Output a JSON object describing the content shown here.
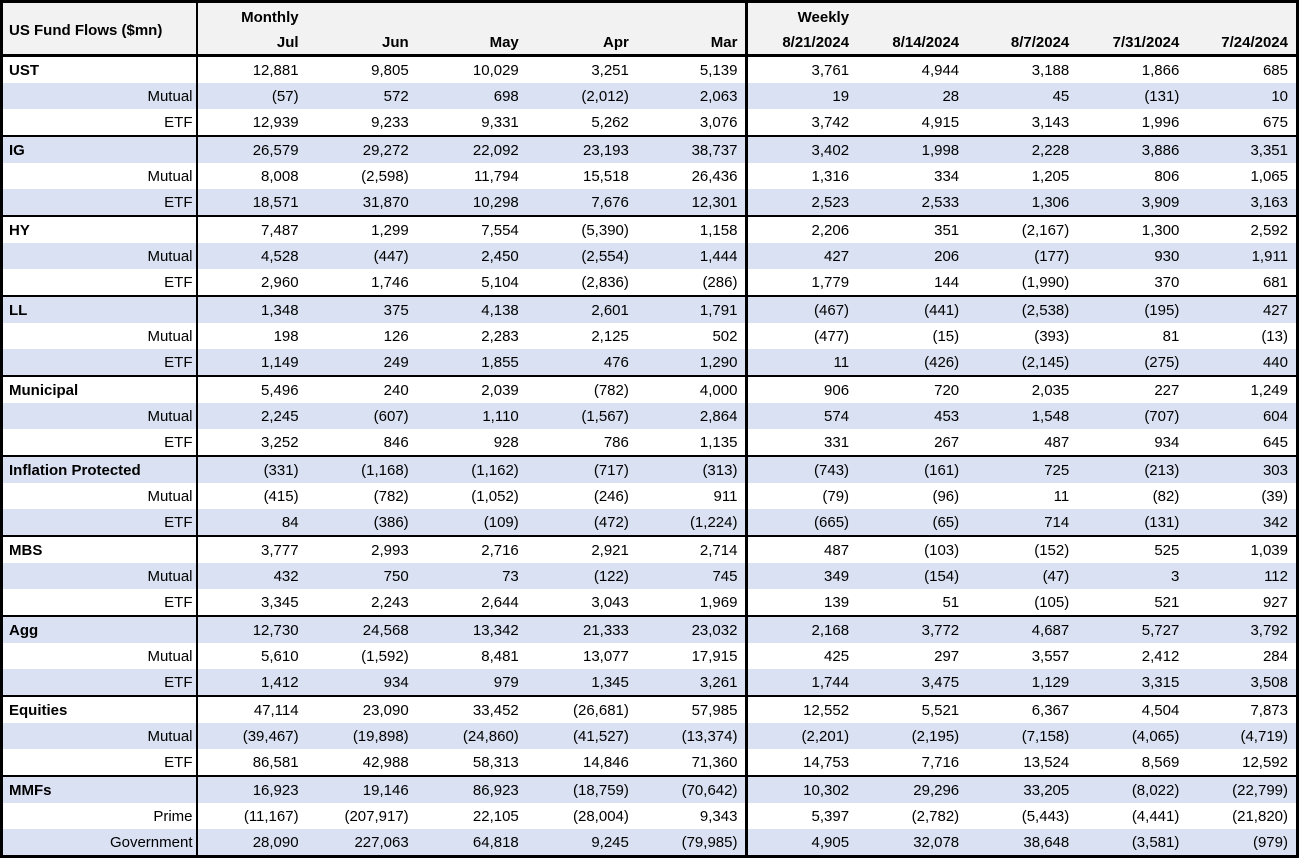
{
  "table": {
    "title": "US Fund Flows ($mn)",
    "monthly_label": "Monthly",
    "weekly_label": "Weekly",
    "monthly_columns": [
      "Jul",
      "Jun",
      "May",
      "Apr",
      "Mar"
    ],
    "weekly_columns": [
      "8/21/2024",
      "8/14/2024",
      "8/7/2024",
      "7/31/2024",
      "7/24/2024"
    ],
    "colors": {
      "band": "#d9e1f2",
      "header_bg": "#f2f2f2",
      "border": "#000000"
    },
    "groups": [
      {
        "rows": [
          {
            "label": "UST",
            "monthly": [
              "12,881",
              "9,805",
              "10,029",
              "3,251",
              "5,139"
            ],
            "weekly": [
              "3,761",
              "4,944",
              "3,188",
              "1,866",
              "685"
            ]
          },
          {
            "label": "Mutual",
            "monthly": [
              "(57)",
              "572",
              "698",
              "(2,012)",
              "2,063"
            ],
            "weekly": [
              "19",
              "28",
              "45",
              "(131)",
              "10"
            ]
          },
          {
            "label": "ETF",
            "monthly": [
              "12,939",
              "9,233",
              "9,331",
              "5,262",
              "3,076"
            ],
            "weekly": [
              "3,742",
              "4,915",
              "3,143",
              "1,996",
              "675"
            ]
          }
        ]
      },
      {
        "rows": [
          {
            "label": "IG",
            "monthly": [
              "26,579",
              "29,272",
              "22,092",
              "23,193",
              "38,737"
            ],
            "weekly": [
              "3,402",
              "1,998",
              "2,228",
              "3,886",
              "3,351"
            ]
          },
          {
            "label": "Mutual",
            "monthly": [
              "8,008",
              "(2,598)",
              "11,794",
              "15,518",
              "26,436"
            ],
            "weekly": [
              "1,316",
              "334",
              "1,205",
              "806",
              "1,065"
            ]
          },
          {
            "label": "ETF",
            "monthly": [
              "18,571",
              "31,870",
              "10,298",
              "7,676",
              "12,301"
            ],
            "weekly": [
              "2,523",
              "2,533",
              "1,306",
              "3,909",
              "3,163"
            ]
          }
        ]
      },
      {
        "rows": [
          {
            "label": "HY",
            "monthly": [
              "7,487",
              "1,299",
              "7,554",
              "(5,390)",
              "1,158"
            ],
            "weekly": [
              "2,206",
              "351",
              "(2,167)",
              "1,300",
              "2,592"
            ]
          },
          {
            "label": "Mutual",
            "monthly": [
              "4,528",
              "(447)",
              "2,450",
              "(2,554)",
              "1,444"
            ],
            "weekly": [
              "427",
              "206",
              "(177)",
              "930",
              "1,911"
            ]
          },
          {
            "label": "ETF",
            "monthly": [
              "2,960",
              "1,746",
              "5,104",
              "(2,836)",
              "(286)"
            ],
            "weekly": [
              "1,779",
              "144",
              "(1,990)",
              "370",
              "681"
            ]
          }
        ]
      },
      {
        "rows": [
          {
            "label": "LL",
            "monthly": [
              "1,348",
              "375",
              "4,138",
              "2,601",
              "1,791"
            ],
            "weekly": [
              "(467)",
              "(441)",
              "(2,538)",
              "(195)",
              "427"
            ]
          },
          {
            "label": "Mutual",
            "monthly": [
              "198",
              "126",
              "2,283",
              "2,125",
              "502"
            ],
            "weekly": [
              "(477)",
              "(15)",
              "(393)",
              "81",
              "(13)"
            ]
          },
          {
            "label": "ETF",
            "monthly": [
              "1,149",
              "249",
              "1,855",
              "476",
              "1,290"
            ],
            "weekly": [
              "11",
              "(426)",
              "(2,145)",
              "(275)",
              "440"
            ]
          }
        ]
      },
      {
        "rows": [
          {
            "label": "Municipal",
            "monthly": [
              "5,496",
              "240",
              "2,039",
              "(782)",
              "4,000"
            ],
            "weekly": [
              "906",
              "720",
              "2,035",
              "227",
              "1,249"
            ]
          },
          {
            "label": "Mutual",
            "monthly": [
              "2,245",
              "(607)",
              "1,110",
              "(1,567)",
              "2,864"
            ],
            "weekly": [
              "574",
              "453",
              "1,548",
              "(707)",
              "604"
            ]
          },
          {
            "label": "ETF",
            "monthly": [
              "3,252",
              "846",
              "928",
              "786",
              "1,135"
            ],
            "weekly": [
              "331",
              "267",
              "487",
              "934",
              "645"
            ]
          }
        ]
      },
      {
        "rows": [
          {
            "label": "Inflation Protected",
            "monthly": [
              "(331)",
              "(1,168)",
              "(1,162)",
              "(717)",
              "(313)"
            ],
            "weekly": [
              "(743)",
              "(161)",
              "725",
              "(213)",
              "303"
            ]
          },
          {
            "label": "Mutual",
            "monthly": [
              "(415)",
              "(782)",
              "(1,052)",
              "(246)",
              "911"
            ],
            "weekly": [
              "(79)",
              "(96)",
              "11",
              "(82)",
              "(39)"
            ]
          },
          {
            "label": "ETF",
            "monthly": [
              "84",
              "(386)",
              "(109)",
              "(472)",
              "(1,224)"
            ],
            "weekly": [
              "(665)",
              "(65)",
              "714",
              "(131)",
              "342"
            ]
          }
        ]
      },
      {
        "rows": [
          {
            "label": "MBS",
            "monthly": [
              "3,777",
              "2,993",
              "2,716",
              "2,921",
              "2,714"
            ],
            "weekly": [
              "487",
              "(103)",
              "(152)",
              "525",
              "1,039"
            ]
          },
          {
            "label": "Mutual",
            "monthly": [
              "432",
              "750",
              "73",
              "(122)",
              "745"
            ],
            "weekly": [
              "349",
              "(154)",
              "(47)",
              "3",
              "112"
            ]
          },
          {
            "label": "ETF",
            "monthly": [
              "3,345",
              "2,243",
              "2,644",
              "3,043",
              "1,969"
            ],
            "weekly": [
              "139",
              "51",
              "(105)",
              "521",
              "927"
            ]
          }
        ]
      },
      {
        "rows": [
          {
            "label": "Agg",
            "monthly": [
              "12,730",
              "24,568",
              "13,342",
              "21,333",
              "23,032"
            ],
            "weekly": [
              "2,168",
              "3,772",
              "4,687",
              "5,727",
              "3,792"
            ]
          },
          {
            "label": "Mutual",
            "monthly": [
              "5,610",
              "(1,592)",
              "8,481",
              "13,077",
              "17,915"
            ],
            "weekly": [
              "425",
              "297",
              "3,557",
              "2,412",
              "284"
            ]
          },
          {
            "label": "ETF",
            "monthly": [
              "1,412",
              "934",
              "979",
              "1,345",
              "3,261"
            ],
            "weekly": [
              "1,744",
              "3,475",
              "1,129",
              "3,315",
              "3,508"
            ]
          }
        ]
      },
      {
        "rows": [
          {
            "label": "Equities",
            "monthly": [
              "47,114",
              "23,090",
              "33,452",
              "(26,681)",
              "57,985"
            ],
            "weekly": [
              "12,552",
              "5,521",
              "6,367",
              "4,504",
              "7,873"
            ]
          },
          {
            "label": "Mutual",
            "monthly": [
              "(39,467)",
              "(19,898)",
              "(24,860)",
              "(41,527)",
              "(13,374)"
            ],
            "weekly": [
              "(2,201)",
              "(2,195)",
              "(7,158)",
              "(4,065)",
              "(4,719)"
            ]
          },
          {
            "label": "ETF",
            "monthly": [
              "86,581",
              "42,988",
              "58,313",
              "14,846",
              "71,360"
            ],
            "weekly": [
              "14,753",
              "7,716",
              "13,524",
              "8,569",
              "12,592"
            ]
          }
        ]
      },
      {
        "rows": [
          {
            "label": "MMFs",
            "monthly": [
              "16,923",
              "19,146",
              "86,923",
              "(18,759)",
              "(70,642)"
            ],
            "weekly": [
              "10,302",
              "29,296",
              "33,205",
              "(8,022)",
              "(22,799)"
            ]
          },
          {
            "label": "Prime",
            "monthly": [
              "(11,167)",
              "(207,917)",
              "22,105",
              "(28,004)",
              "9,343"
            ],
            "weekly": [
              "5,397",
              "(2,782)",
              "(5,443)",
              "(4,441)",
              "(21,820)"
            ]
          },
          {
            "label": "Government",
            "monthly": [
              "28,090",
              "227,063",
              "64,818",
              "9,245",
              "(79,985)"
            ],
            "weekly": [
              "4,905",
              "32,078",
              "38,648",
              "(3,581)",
              "(979)"
            ]
          }
        ]
      }
    ]
  }
}
